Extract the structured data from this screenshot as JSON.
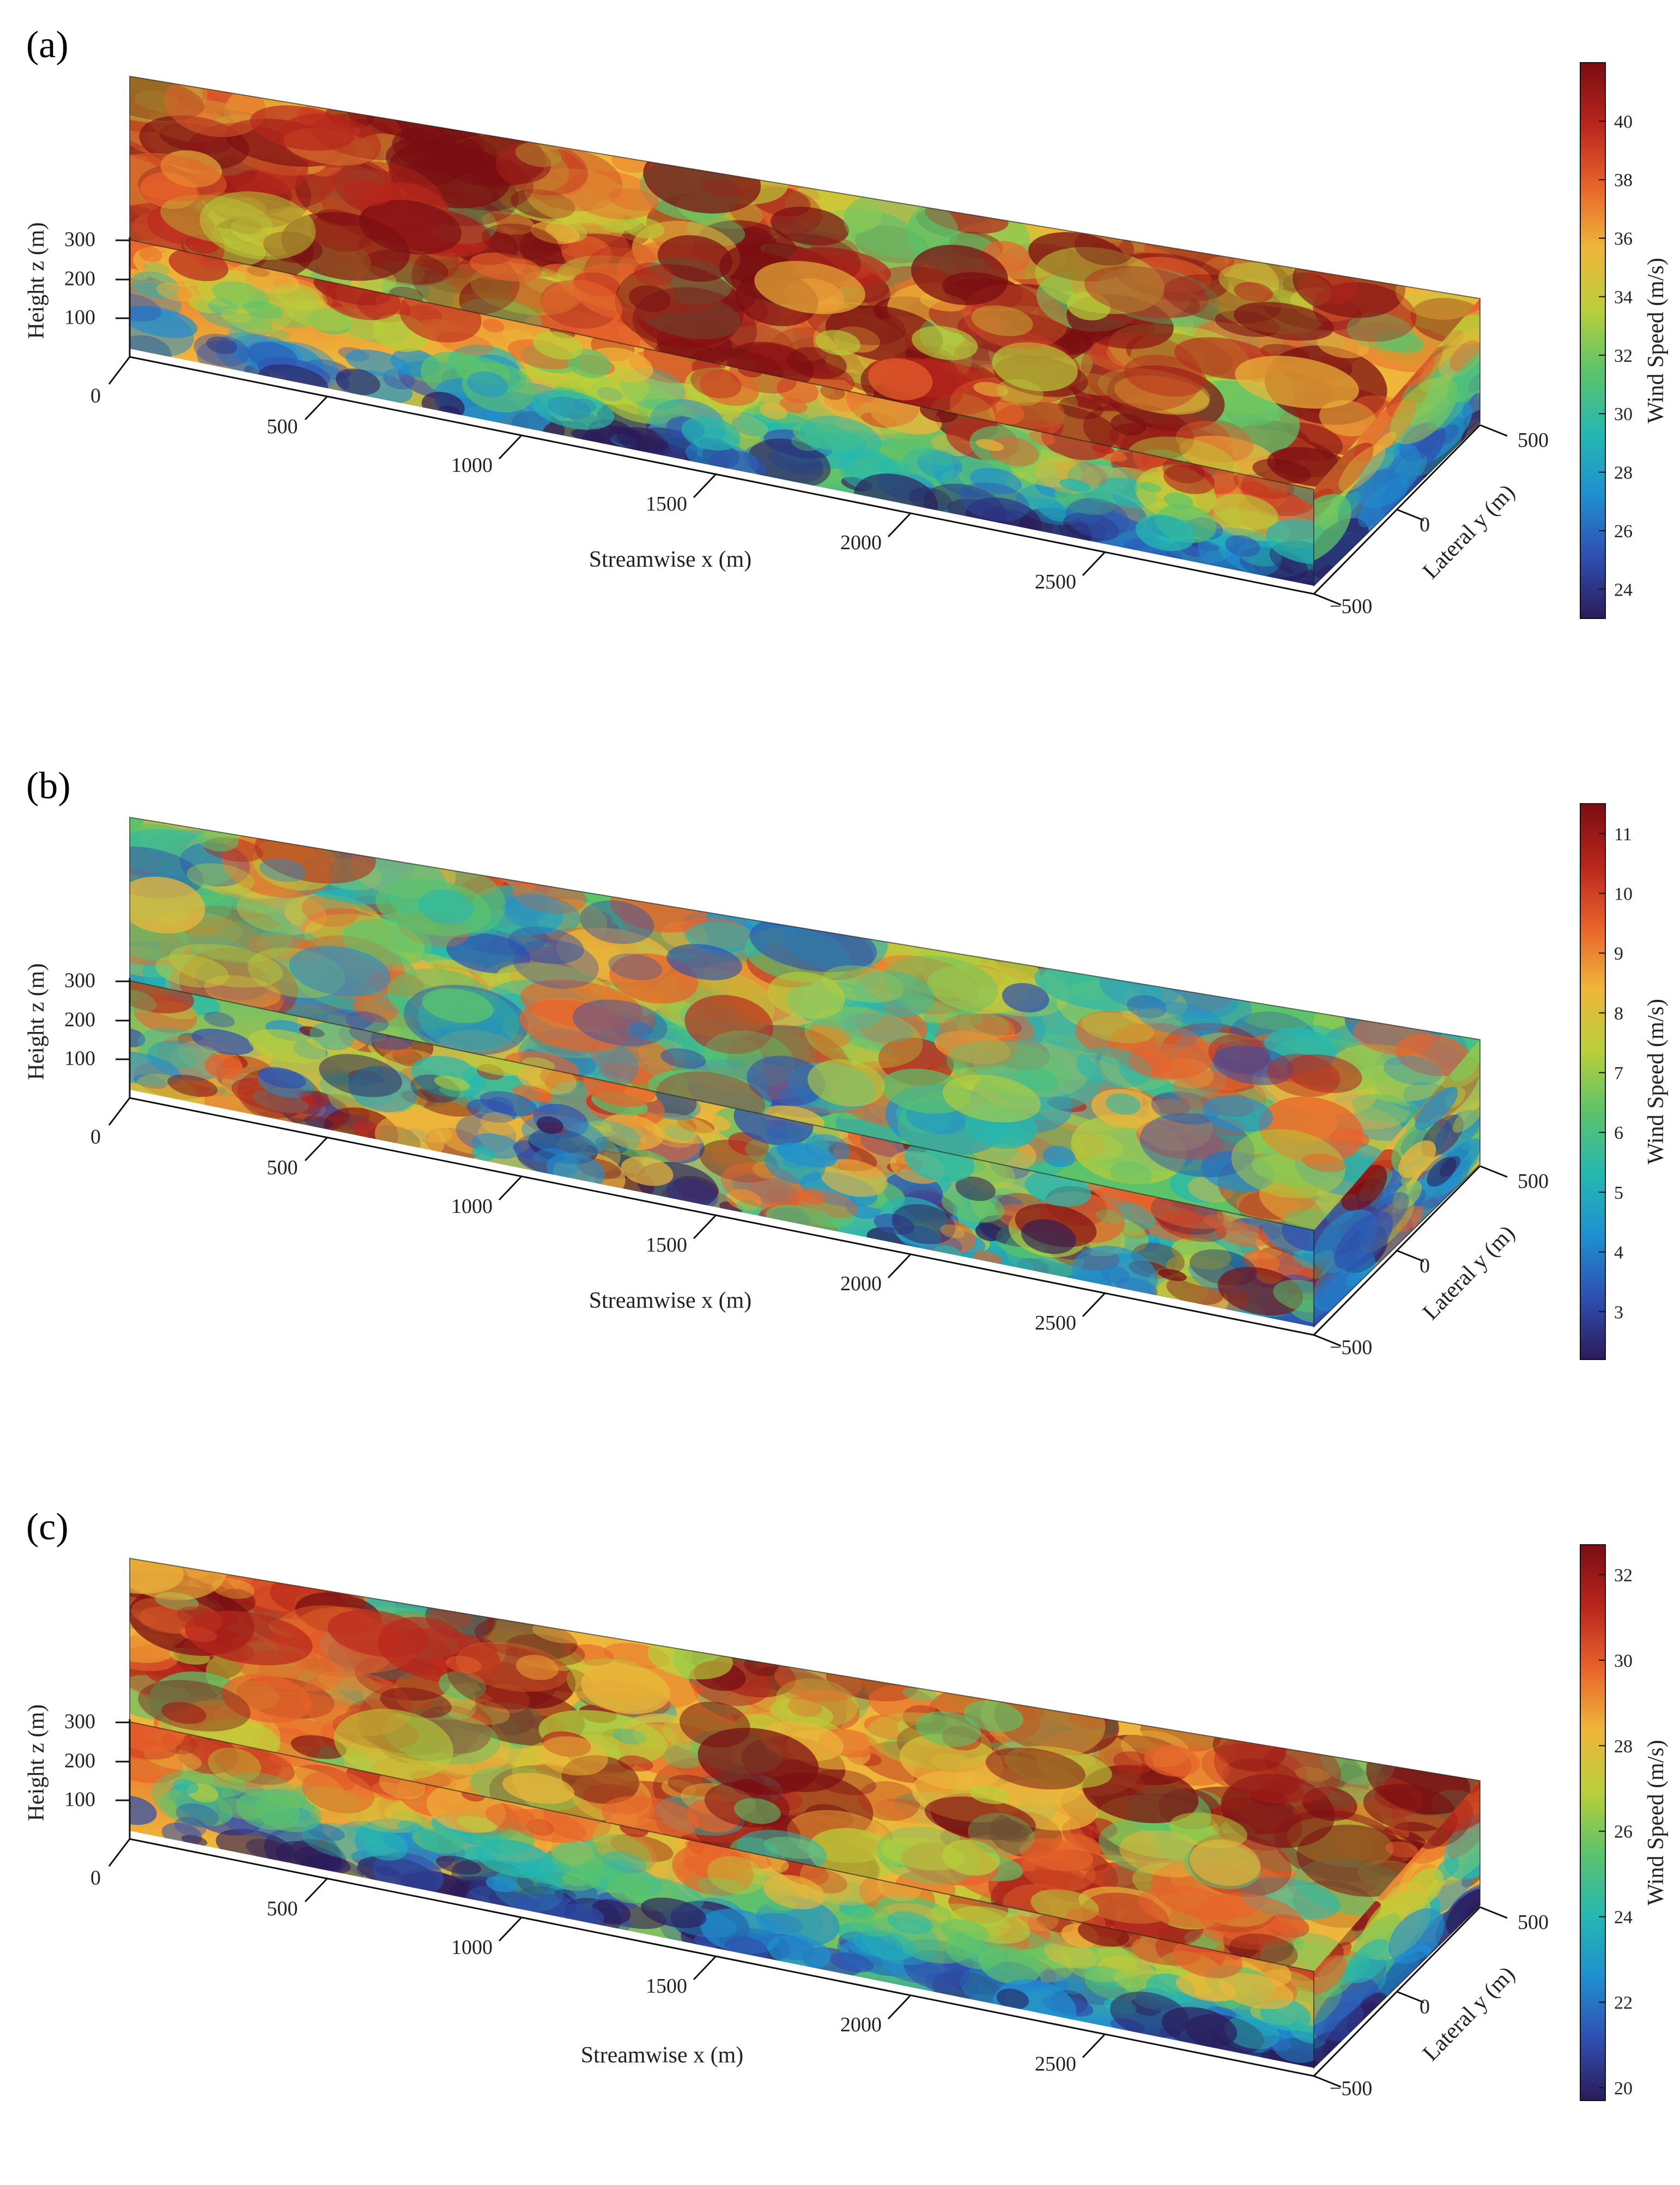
{
  "colors": {
    "colormap": [
      "#2b1b5a",
      "#2f4fb0",
      "#1f8fd0",
      "#25b8b0",
      "#5cc36b",
      "#b9cf3a",
      "#eeb63a",
      "#e8632b",
      "#b8261c",
      "#7a0d12"
    ],
    "axis_line": "#111111"
  },
  "chart_data": [
    {
      "panel_label": "(a)",
      "type": "heatmap",
      "subtype": "3d-volume-slice",
      "xlabel": "Streamwise x (m)",
      "ylabel": "Lateral y (m)",
      "zlabel": "Height z (m)",
      "x_ticks": [
        "500",
        "1000",
        "1500",
        "2000",
        "2500"
      ],
      "y_ticks": [
        "500",
        "0",
        "−500"
      ],
      "z_ticks": [
        "300",
        "200",
        "100",
        "0"
      ],
      "xlim": [
        0,
        3000
      ],
      "ylim": [
        -500,
        500
      ],
      "zlim": [
        0,
        350
      ],
      "colorbar": {
        "label": "Wind Speed (m/s)",
        "range": [
          23,
          42
        ],
        "ticks": [
          "40",
          "38",
          "36",
          "34",
          "32",
          "30",
          "28",
          "26",
          "24"
        ]
      },
      "field": {
        "low_speed_near_ground": true,
        "top_level_mix": 0.78
      }
    },
    {
      "panel_label": "(b)",
      "type": "heatmap",
      "subtype": "3d-volume-slice",
      "xlabel": "Streamwise x (m)",
      "ylabel": "Lateral y (m)",
      "zlabel": "Height z (m)",
      "x_ticks": [
        "500",
        "1000",
        "1500",
        "2000",
        "2500"
      ],
      "y_ticks": [
        "500",
        "0",
        "−500"
      ],
      "z_ticks": [
        "300",
        "200",
        "100",
        "0"
      ],
      "xlim": [
        0,
        3000
      ],
      "ylim": [
        -500,
        500
      ],
      "zlim": [
        0,
        350
      ],
      "colorbar": {
        "label": "Wind Speed (m/s)",
        "range": [
          2.2,
          11.5
        ],
        "ticks": [
          "11",
          "10",
          "9",
          "8",
          "7",
          "6",
          "5",
          "4",
          "3"
        ]
      },
      "field": {
        "low_speed_near_ground": false,
        "top_level_mix": 0.5
      }
    },
    {
      "panel_label": "(c)",
      "type": "heatmap",
      "subtype": "3d-volume-slice",
      "xlabel": "Streamwise x (m)",
      "ylabel": "Lateral y (m)",
      "zlabel": "Height z (m)",
      "x_ticks": [
        "500",
        "1000",
        "1500",
        "2000",
        "2500"
      ],
      "y_ticks": [
        "500",
        "0",
        "−500"
      ],
      "z_ticks": [
        "300",
        "200",
        "100",
        "0"
      ],
      "xlim": [
        0,
        3000
      ],
      "ylim": [
        -500,
        500
      ],
      "zlim": [
        0,
        350
      ],
      "colorbar": {
        "label": "Wind Speed (m/s)",
        "range": [
          19.7,
          32.7
        ],
        "ticks": [
          "32",
          "30",
          "28",
          "26",
          "24",
          "22",
          "20"
        ]
      },
      "field": {
        "low_speed_near_ground": true,
        "top_level_mix": 0.72
      }
    }
  ]
}
